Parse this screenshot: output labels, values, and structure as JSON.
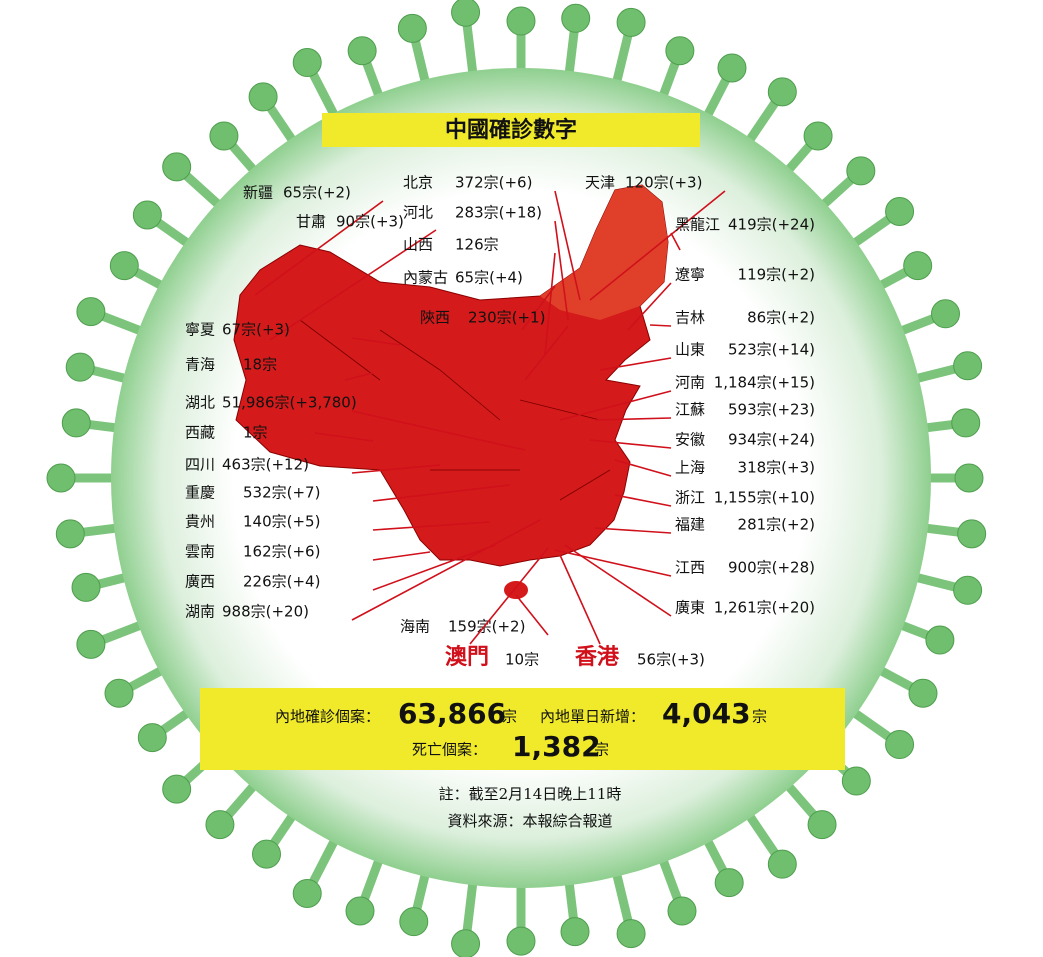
{
  "title": "中國確診數字",
  "regions": [
    {
      "name": "新疆",
      "cases": "65宗(+2)"
    },
    {
      "name": "甘肅",
      "cases": "90宗(+3)"
    },
    {
      "name": "北京",
      "cases": "372宗(+6)"
    },
    {
      "name": "河北",
      "cases": "283宗(+18)"
    },
    {
      "name": "山西",
      "cases": "126宗"
    },
    {
      "name": "內蒙古",
      "cases": "65宗(+4)"
    },
    {
      "name": "陝西",
      "cases": "230宗(+1)"
    },
    {
      "name": "天津",
      "cases": "120宗(+3)"
    },
    {
      "name": "黑龍江",
      "cases": "419宗(+24)"
    },
    {
      "name": "遼寧",
      "cases": "119宗(+2)"
    },
    {
      "name": "吉林",
      "cases": "86宗(+2)"
    },
    {
      "name": "山東",
      "cases": "523宗(+14)"
    },
    {
      "name": "河南",
      "cases": "1,184宗(+15)"
    },
    {
      "name": "江蘇",
      "cases": "593宗(+23)"
    },
    {
      "name": "安徽",
      "cases": "934宗(+24)"
    },
    {
      "name": "上海",
      "cases": "318宗(+3)"
    },
    {
      "name": "浙江",
      "cases": "1,155宗(+10)"
    },
    {
      "name": "福建",
      "cases": "281宗(+2)"
    },
    {
      "name": "江西",
      "cases": "900宗(+28)"
    },
    {
      "name": "廣東",
      "cases": "1,261宗(+20)"
    },
    {
      "name": "寧夏",
      "cases": "67宗(+3)"
    },
    {
      "name": "青海",
      "cases": "18宗"
    },
    {
      "name": "湖北",
      "cases": "51,986宗(+3,780)"
    },
    {
      "name": "西藏",
      "cases": "1宗"
    },
    {
      "name": "四川",
      "cases": "463宗(+12)"
    },
    {
      "name": "重慶",
      "cases": "532宗(+7)"
    },
    {
      "name": "貴州",
      "cases": "140宗(+5)"
    },
    {
      "name": "雲南",
      "cases": "162宗(+6)"
    },
    {
      "name": "廣西",
      "cases": "226宗(+4)"
    },
    {
      "name": "湖南",
      "cases": "988宗(+20)"
    },
    {
      "name": "海南",
      "cases": "159宗(+2)"
    },
    {
      "name": "澳門",
      "cases": "10宗"
    },
    {
      "name": "香港",
      "cases": "56宗(+3)"
    }
  ],
  "summary": {
    "confirmed_label": "內地確診個案：",
    "confirmed": "63,866",
    "confirmed_unit": "宗",
    "new_label": "內地單日新增：",
    "new": "4,043",
    "new_unit": "宗",
    "deaths_label": "死亡個案：",
    "deaths": "1,382",
    "deaths_unit": "宗"
  },
  "notes": [
    "註：截至2月14日晚上11時",
    "資料來源：本報綜合報道"
  ]
}
